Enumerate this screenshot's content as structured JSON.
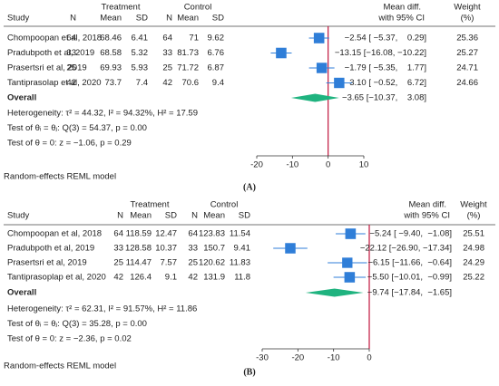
{
  "chart_data": [
    {
      "type": "forest",
      "panel_label": "(A)",
      "columns": {
        "study": "Study",
        "treatment": "Treatment",
        "control": "Control",
        "n": "N",
        "mean": "Mean",
        "sd": "SD",
        "effect": "Mean diff.",
        "effect_sub": "with 95% CI",
        "weight": "Weight",
        "weight_sub": "(%)"
      },
      "studies": [
        {
          "name": "Chompoopan et al, 2018",
          "treatment": [
            64,
            68.46,
            6.41
          ],
          "control": [
            64,
            71,
            9.62
          ],
          "effect": -2.54,
          "lower": -5.37,
          "upper": 0.29,
          "value_label": "−2.54 [ −5.37,    0.29]",
          "weight": 25.36
        },
        {
          "name": "Pradubpoth et al, 2019",
          "treatment": [
            33,
            68.58,
            5.32
          ],
          "control": [
            33,
            81.73,
            6.76
          ],
          "effect": -13.15,
          "lower": -16.08,
          "upper": -10.22,
          "value_label": "−13.15 [−16.08, −10.22]",
          "weight": 25.27
        },
        {
          "name": "Prasertsri et al, 2019",
          "treatment": [
            25,
            69.93,
            5.93
          ],
          "control": [
            25,
            71.72,
            6.87
          ],
          "effect": -1.79,
          "lower": -5.35,
          "upper": 1.77,
          "value_label": "−1.79 [ −5.35,    1.77]",
          "weight": 24.71
        },
        {
          "name": "Tantiprasolap et al, 2020",
          "treatment": [
            42,
            73.7,
            7.4
          ],
          "control": [
            42,
            70.6,
            9.4
          ],
          "effect": 3.1,
          "lower": -0.52,
          "upper": 6.72,
          "value_label": "3.10 [ −0.52,    6.72]",
          "weight": 24.66
        }
      ],
      "overall": {
        "name": "Overall",
        "effect": -3.65,
        "lower": -10.37,
        "upper": 3.08,
        "value_label": "−3.65 [−10.37,    3.08]"
      },
      "notes": [
        "Heterogeneity: τ² = 44.32, I² = 94.32%, H² = 17.59",
        "Test of θᵢ = θⱼ: Q(3) = 54.37, p = 0.00",
        "Test of θ = 0: z = −1.06, p = 0.29"
      ],
      "model": "Random-effects REML model",
      "xlim": [
        -20,
        10
      ],
      "xticks": [
        -20,
        -10,
        0,
        10
      ],
      "square_color": "#2f7ed8",
      "diamond_color": "#1fb37f",
      "null_line_color": "#c0143c"
    },
    {
      "type": "forest",
      "panel_label": "(B)",
      "columns": {
        "study": "Study",
        "treatment": "Treatment",
        "control": "Control",
        "n": "N",
        "mean": "Mean",
        "sd": "SD",
        "effect": "Mean diff.",
        "effect_sub": "with 95% CI",
        "weight": "Weight",
        "weight_sub": "(%)"
      },
      "studies": [
        {
          "name": "Chompoopan et al, 2018",
          "treatment": [
            64,
            118.59,
            12.47
          ],
          "control": [
            64,
            123.83,
            11.54
          ],
          "effect": -5.24,
          "lower": -9.4,
          "upper": -1.08,
          "value_label": "−5.24 [ −9.40,  −1.08]",
          "weight": 25.51
        },
        {
          "name": "Pradubpoth et al, 2019",
          "treatment": [
            33,
            128.58,
            10.37
          ],
          "control": [
            33,
            150.7,
            9.41
          ],
          "effect": -22.12,
          "lower": -26.9,
          "upper": -17.34,
          "value_label": "−22.12 [−26.90, −17.34]",
          "weight": 24.98
        },
        {
          "name": "Prasertsri et al, 2019",
          "treatment": [
            25,
            114.47,
            7.57
          ],
          "control": [
            25,
            120.62,
            11.83
          ],
          "effect": -6.15,
          "lower": -11.66,
          "upper": -0.64,
          "value_label": "−6.15 [−11.66,  −0.64]",
          "weight": 24.29
        },
        {
          "name": "Tantiprasoplap et al, 2020",
          "treatment": [
            42,
            126.4,
            9.1
          ],
          "control": [
            42,
            131.9,
            11.8
          ],
          "effect": -5.5,
          "lower": -10.01,
          "upper": -0.99,
          "value_label": "−5.50 [−10.01,  −0.99]",
          "weight": 25.22
        }
      ],
      "overall": {
        "name": "Overall",
        "effect": -9.74,
        "lower": -17.84,
        "upper": -1.65,
        "value_label": "−9.74 [−17.84,  −1.65]"
      },
      "notes": [
        "Heterogeneity: τ² = 62.31, I² = 91.57%, H² = 11.86",
        "Test of θᵢ = θⱼ: Q(3) = 35.28, p = 0.00",
        "Test of θ = 0: z = −2.36, p = 0.02"
      ],
      "model": "Random-effects REML model",
      "xlim": [
        -30,
        0
      ],
      "xticks": [
        -30,
        -20,
        -10,
        0
      ],
      "square_color": "#2f7ed8",
      "diamond_color": "#1fb37f",
      "null_line_color": "#c0143c"
    }
  ]
}
